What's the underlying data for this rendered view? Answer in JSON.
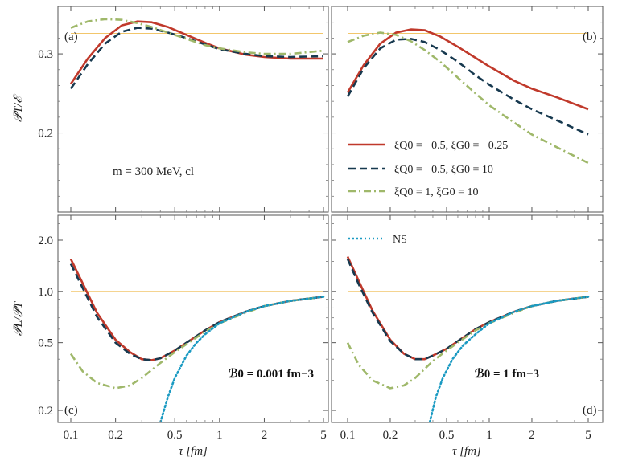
{
  "chart_data": [
    {
      "panel_label": "(a)",
      "type": "line",
      "ylabel": "𝒫T/ℰ",
      "xscale": "log",
      "yscale": "linear",
      "xlim": [
        0.1,
        5
      ],
      "ylim": [
        0.1,
        0.36
      ],
      "yticks": [
        "0.2",
        "0.3"
      ],
      "annotation": "m = 300 MeV, cl",
      "series": [
        {
          "name": "ξQ0 = −0.5, ξG0 = −0.25",
          "color": "#c0392b",
          "style": "solid",
          "x": [
            0.1,
            0.13,
            0.17,
            0.22,
            0.28,
            0.35,
            0.45,
            0.6,
            0.8,
            1.0,
            1.5,
            2.0,
            3.0,
            5.0
          ],
          "y": [
            0.262,
            0.294,
            0.32,
            0.336,
            0.341,
            0.34,
            0.334,
            0.324,
            0.314,
            0.307,
            0.299,
            0.296,
            0.294,
            0.294
          ]
        },
        {
          "name": "ξQ0 = −0.5, ξG0 = 10",
          "color": "#17394f",
          "style": "dashed",
          "x": [
            0.1,
            0.13,
            0.17,
            0.22,
            0.28,
            0.35,
            0.45,
            0.6,
            0.8,
            1.0,
            1.5,
            2.0,
            3.0,
            5.0
          ],
          "y": [
            0.256,
            0.287,
            0.313,
            0.328,
            0.333,
            0.332,
            0.327,
            0.32,
            0.312,
            0.306,
            0.3,
            0.297,
            0.296,
            0.297
          ]
        },
        {
          "name": "ξQ0 = 1, ξG0 = 10",
          "color": "#9fb86a",
          "style": "dashdot",
          "x": [
            0.1,
            0.13,
            0.17,
            0.22,
            0.28,
            0.35,
            0.45,
            0.6,
            0.8,
            1.0,
            1.5,
            2.0,
            3.0,
            5.0
          ],
          "y": [
            0.333,
            0.341,
            0.344,
            0.343,
            0.339,
            0.334,
            0.327,
            0.319,
            0.311,
            0.307,
            0.302,
            0.3,
            0.3,
            0.304
          ]
        },
        {
          "name": "",
          "color": "#f2c66b",
          "style": "thin",
          "x": [
            0.1,
            5.0
          ],
          "y": [
            0.326,
            0.326
          ]
        }
      ]
    },
    {
      "panel_label": "(b)",
      "type": "line",
      "xscale": "log",
      "yscale": "linear",
      "xlim": [
        0.1,
        5
      ],
      "ylim": [
        0.1,
        0.36
      ],
      "legend": [
        {
          "text": "ξQ0 = −0.5, ξG0 = −0.25",
          "color": "#c0392b",
          "style": "solid"
        },
        {
          "text": "ξQ0 = −0.5, ξG0 = 10",
          "color": "#17394f",
          "style": "dashed"
        },
        {
          "text": "ξQ0 = 1, ξG0 = 10",
          "color": "#9fb86a",
          "style": "dashdot"
        }
      ],
      "series": [
        {
          "name": "ξQ0 = −0.5, ξG0 = −0.25",
          "color": "#c0392b",
          "style": "solid",
          "x": [
            0.1,
            0.13,
            0.17,
            0.22,
            0.28,
            0.35,
            0.45,
            0.6,
            0.8,
            1.0,
            1.5,
            2.0,
            3.0,
            5.0
          ],
          "y": [
            0.251,
            0.286,
            0.313,
            0.327,
            0.331,
            0.33,
            0.322,
            0.309,
            0.295,
            0.284,
            0.266,
            0.256,
            0.245,
            0.23
          ]
        },
        {
          "name": "ξQ0 = −0.5, ξG0 = 10",
          "color": "#17394f",
          "style": "dashed",
          "x": [
            0.1,
            0.13,
            0.17,
            0.22,
            0.28,
            0.35,
            0.45,
            0.6,
            0.8,
            1.0,
            1.5,
            2.0,
            3.0,
            5.0
          ],
          "y": [
            0.246,
            0.282,
            0.307,
            0.318,
            0.319,
            0.315,
            0.305,
            0.29,
            0.273,
            0.261,
            0.242,
            0.23,
            0.216,
            0.198
          ]
        },
        {
          "name": "ξQ0 = 1, ξG0 = 10",
          "color": "#9fb86a",
          "style": "dashdot",
          "x": [
            0.1,
            0.13,
            0.17,
            0.22,
            0.28,
            0.35,
            0.45,
            0.6,
            0.8,
            1.0,
            1.5,
            2.0,
            3.0,
            5.0
          ],
          "y": [
            0.315,
            0.323,
            0.327,
            0.324,
            0.316,
            0.305,
            0.29,
            0.27,
            0.25,
            0.235,
            0.213,
            0.198,
            0.182,
            0.162
          ]
        },
        {
          "name": "",
          "color": "#f2c66b",
          "style": "thin",
          "x": [
            0.1,
            5.0
          ],
          "y": [
            0.326,
            0.326
          ]
        }
      ]
    },
    {
      "panel_label": "(c)",
      "type": "line",
      "ylabel": "𝒫L/𝒫T",
      "xlabel": "τ [fm]",
      "xscale": "log",
      "yscale": "log",
      "xlim": [
        0.1,
        5
      ],
      "ylim": [
        0.17,
        2.8
      ],
      "yticks": [
        "0.2",
        "0.5",
        "1.0",
        "2.0"
      ],
      "xticks": [
        "0.1",
        "0.2",
        "0.5",
        "1",
        "2",
        "5"
      ],
      "annotation": "ℬ0 = 0.001 fm−3",
      "series": [
        {
          "name": "ξQ0 = −0.5, ξG0 = −0.25",
          "color": "#c0392b",
          "style": "solid",
          "x": [
            0.1,
            0.12,
            0.15,
            0.2,
            0.25,
            0.3,
            0.35,
            0.4,
            0.5,
            0.6,
            0.8,
            1.0,
            1.5,
            2.0,
            3.0,
            5.0
          ],
          "y": [
            1.55,
            1.12,
            0.75,
            0.52,
            0.44,
            0.4,
            0.395,
            0.405,
            0.45,
            0.5,
            0.59,
            0.66,
            0.76,
            0.82,
            0.88,
            0.93
          ]
        },
        {
          "name": "ξQ0 = −0.5, ξG0 = 10",
          "color": "#17394f",
          "style": "dashed",
          "x": [
            0.1,
            0.12,
            0.15,
            0.2,
            0.25,
            0.3,
            0.35,
            0.4,
            0.5,
            0.6,
            0.8,
            1.0,
            1.5,
            2.0,
            3.0,
            5.0
          ],
          "y": [
            1.45,
            1.05,
            0.71,
            0.5,
            0.43,
            0.4,
            0.395,
            0.405,
            0.45,
            0.5,
            0.59,
            0.66,
            0.76,
            0.82,
            0.88,
            0.93
          ]
        },
        {
          "name": "ξQ0 = 1, ξG0 = 10",
          "color": "#9fb86a",
          "style": "dashdot",
          "x": [
            0.1,
            0.12,
            0.15,
            0.2,
            0.25,
            0.3,
            0.4,
            0.5,
            0.6,
            0.8,
            1.0,
            1.5,
            2.0,
            3.0,
            5.0
          ],
          "y": [
            0.43,
            0.34,
            0.29,
            0.27,
            0.28,
            0.31,
            0.38,
            0.44,
            0.49,
            0.58,
            0.65,
            0.75,
            0.82,
            0.88,
            0.93
          ]
        },
        {
          "name": "NS",
          "color": "#1a9ac2",
          "style": "dotted",
          "x": [
            0.4,
            0.45,
            0.5,
            0.6,
            0.7,
            0.8,
            1.0,
            1.5,
            2.0,
            3.0,
            5.0
          ],
          "y": [
            0.17,
            0.24,
            0.31,
            0.42,
            0.5,
            0.56,
            0.65,
            0.76,
            0.82,
            0.88,
            0.93
          ]
        },
        {
          "name": "",
          "color": "#f2c66b",
          "style": "thin",
          "x": [
            0.1,
            5.0
          ],
          "y": [
            1.0,
            1.0
          ]
        }
      ]
    },
    {
      "panel_label": "(d)",
      "type": "line",
      "xlabel": "τ [fm]",
      "xscale": "log",
      "yscale": "log",
      "xlim": [
        0.1,
        5
      ],
      "ylim": [
        0.17,
        2.8
      ],
      "xticks": [
        "0.1",
        "0.2",
        "0.5",
        "1",
        "2",
        "5"
      ],
      "annotation": "ℬ0 = 1 fm−3",
      "legend": [
        {
          "text": "NS",
          "color": "#1a9ac2",
          "style": "dotted"
        }
      ],
      "series": [
        {
          "name": "ξQ0 = −0.5, ξG0 = −0.25",
          "color": "#c0392b",
          "style": "solid",
          "x": [
            0.1,
            0.12,
            0.15,
            0.2,
            0.25,
            0.3,
            0.35,
            0.4,
            0.5,
            0.6,
            0.8,
            1.0,
            1.5,
            2.0,
            3.0,
            5.0
          ],
          "y": [
            1.6,
            1.15,
            0.77,
            0.52,
            0.43,
            0.4,
            0.4,
            0.42,
            0.46,
            0.51,
            0.6,
            0.66,
            0.76,
            0.82,
            0.88,
            0.93
          ]
        },
        {
          "name": "ξQ0 = −0.5, ξG0 = 10",
          "color": "#17394f",
          "style": "dashed",
          "x": [
            0.1,
            0.12,
            0.15,
            0.2,
            0.25,
            0.3,
            0.35,
            0.4,
            0.5,
            0.6,
            0.8,
            1.0,
            1.5,
            2.0,
            3.0,
            5.0
          ],
          "y": [
            1.55,
            1.1,
            0.75,
            0.51,
            0.43,
            0.4,
            0.4,
            0.42,
            0.46,
            0.51,
            0.6,
            0.66,
            0.76,
            0.82,
            0.88,
            0.93
          ]
        },
        {
          "name": "ξQ0 = 1, ξG0 = 10",
          "color": "#9fb86a",
          "style": "dashdot",
          "x": [
            0.1,
            0.12,
            0.15,
            0.2,
            0.25,
            0.3,
            0.4,
            0.5,
            0.6,
            0.8,
            1.0,
            1.5,
            2.0,
            3.0,
            5.0
          ],
          "y": [
            0.5,
            0.37,
            0.3,
            0.27,
            0.28,
            0.31,
            0.39,
            0.45,
            0.5,
            0.59,
            0.65,
            0.75,
            0.82,
            0.88,
            0.93
          ]
        },
        {
          "name": "NS",
          "color": "#1a9ac2",
          "style": "dotted",
          "x": [
            0.38,
            0.42,
            0.47,
            0.55,
            0.65,
            0.8,
            1.0,
            1.5,
            2.0,
            3.0,
            5.0
          ],
          "y": [
            0.17,
            0.24,
            0.31,
            0.4,
            0.48,
            0.56,
            0.65,
            0.76,
            0.82,
            0.88,
            0.93
          ]
        },
        {
          "name": "",
          "color": "#f2c66b",
          "style": "thin",
          "x": [
            0.1,
            5.0
          ],
          "y": [
            1.0,
            1.0
          ]
        }
      ]
    }
  ]
}
